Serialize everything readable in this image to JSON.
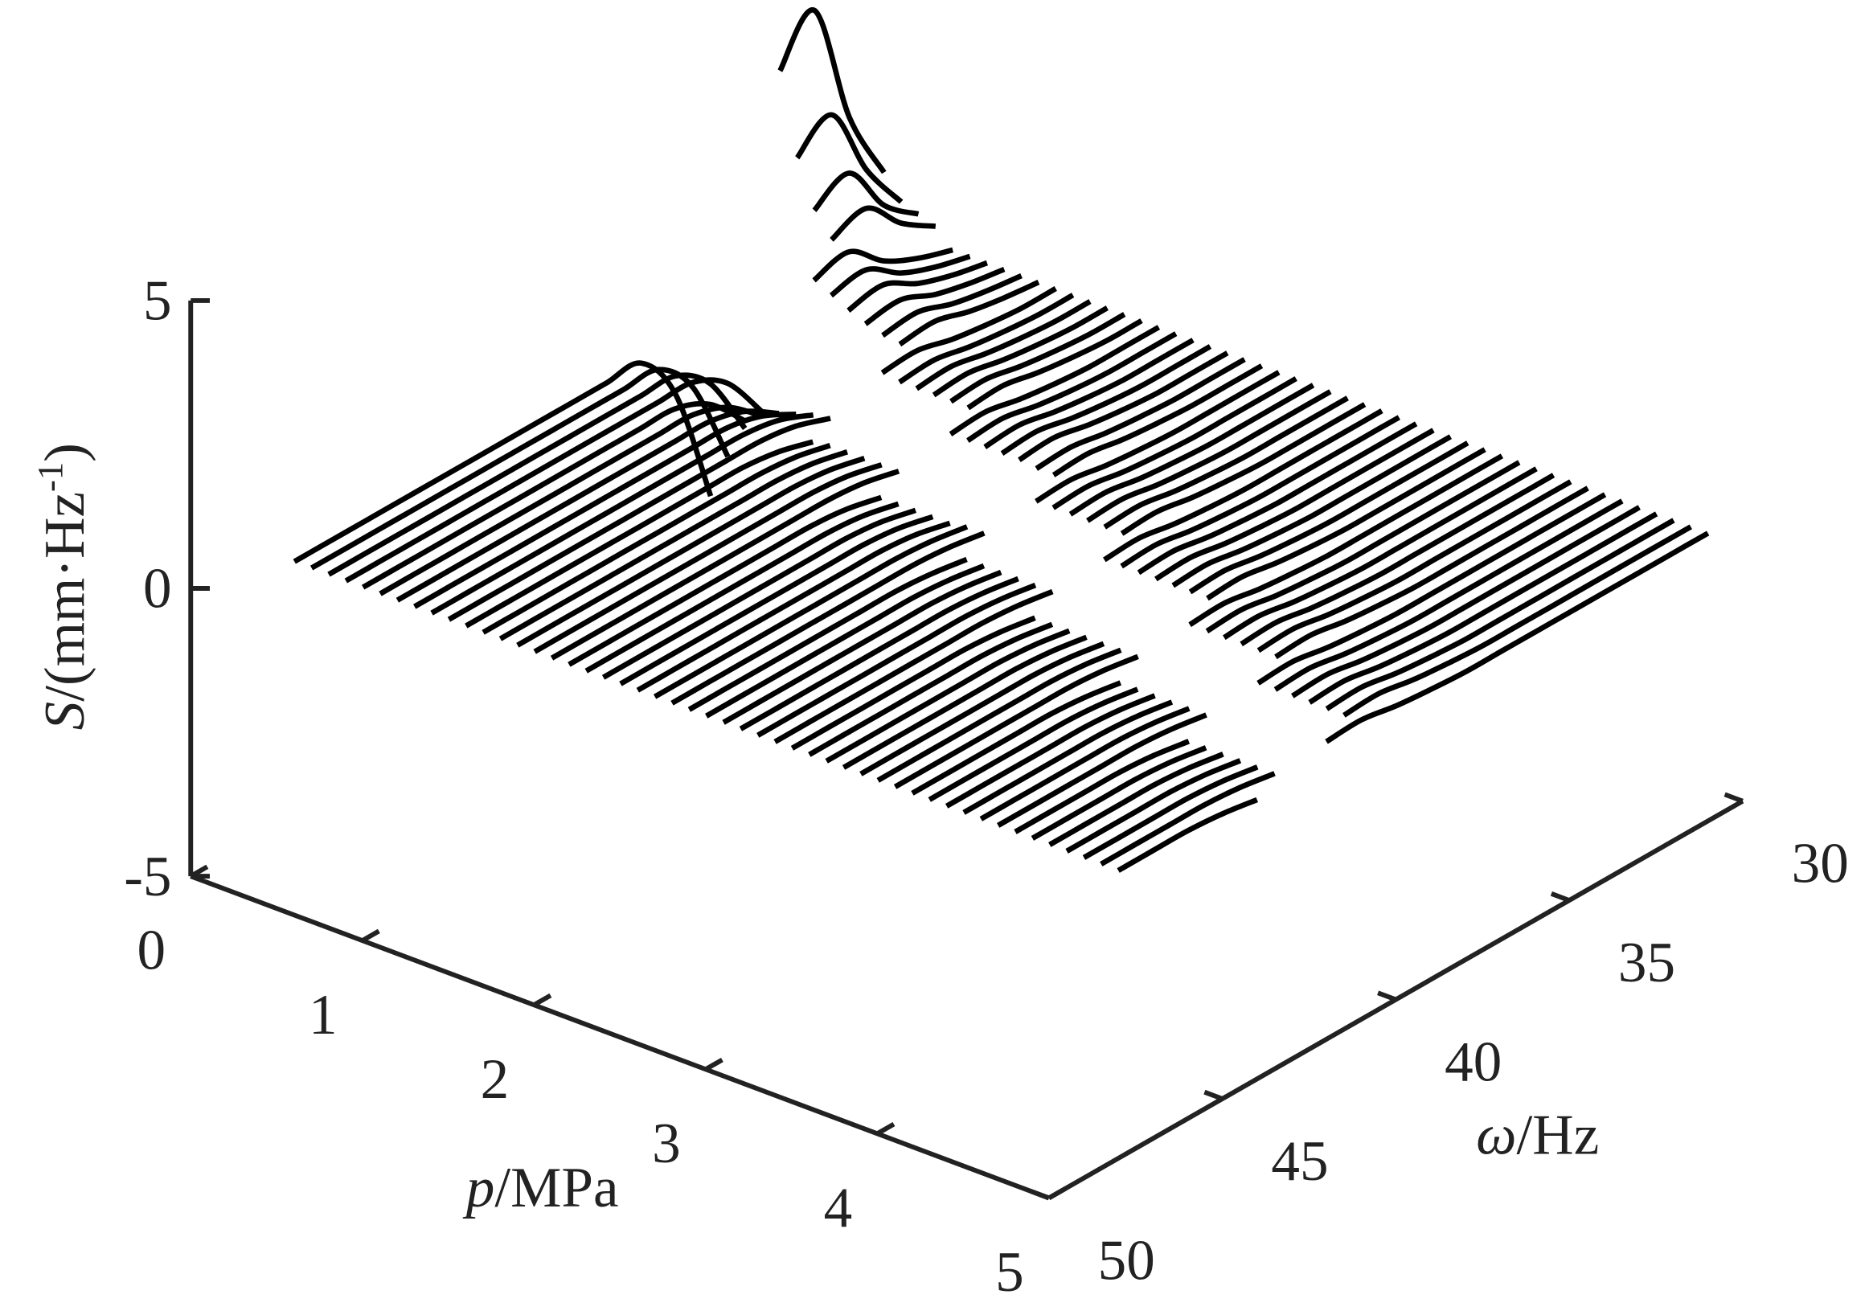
{
  "chart_data": {
    "type": "waterfall3d",
    "color": "#000000",
    "xlabel": [
      "p",
      "/MPa"
    ],
    "ylabel": [
      "ω",
      "/Hz"
    ],
    "zlabel": [
      "S",
      "/(mm·Hz",
      "-1",
      ")"
    ],
    "xlim": [
      0,
      5
    ],
    "xticks": [
      0,
      1,
      2,
      3,
      4,
      5
    ],
    "ylim": [
      30,
      50
    ],
    "yticks": [
      30,
      35,
      40,
      45,
      50
    ],
    "zlim": [
      -5,
      5
    ],
    "zticks": [
      -5,
      0,
      5
    ],
    "x": [
      31,
      32,
      33,
      34,
      35,
      36,
      37,
      38,
      39,
      40,
      41,
      42,
      43,
      44,
      45,
      46,
      47,
      48
    ],
    "series": [
      {
        "p": 0.2,
        "values": [
          0.9,
          2.2,
          4.4,
          3.7,
          null,
          -3.0,
          -0.9,
          0,
          0,
          0,
          0,
          0,
          0,
          0,
          0,
          0,
          0,
          0
        ]
      },
      {
        "p": 0.3,
        "values": [
          0.5,
          1.4,
          2.7,
          2.3,
          null,
          -2.2,
          -0.66,
          0,
          0,
          0,
          0,
          0,
          0,
          0,
          0,
          0,
          0,
          0
        ]
      },
      {
        "p": 0.4,
        "values": [
          0.4,
          0.9,
          1.8,
          1.5,
          null,
          -1.6,
          -0.48,
          0,
          0,
          0,
          0,
          0,
          0,
          0,
          0,
          0,
          0,
          0
        ]
      },
      {
        "p": 0.5,
        "values": [
          0.3,
          0.7,
          1.3,
          1.1,
          null,
          -1.2,
          -0.36,
          0,
          0,
          0,
          0,
          0,
          0,
          0,
          0,
          0,
          0,
          0
        ]
      },
      {
        "p": 0.6,
        "values": [
          0,
          0.2,
          0.5,
          1.0,
          0.85,
          null,
          -0.9,
          -0.27,
          0,
          0,
          0,
          0,
          0,
          0,
          0,
          0,
          0,
          0
        ]
      },
      {
        "p": 0.7,
        "values": [
          0,
          0.16,
          0.4,
          0.8,
          0.7,
          null,
          -0.7,
          -0.21,
          0,
          0,
          0,
          0,
          0,
          0,
          0,
          0,
          0,
          0
        ]
      },
      {
        "p": 0.8,
        "values": [
          0,
          0.13,
          0.33,
          0.65,
          0.55,
          null,
          -0.55,
          -0.17,
          0,
          0,
          0,
          0,
          0,
          0,
          0,
          0,
          0,
          0
        ]
      },
      {
        "p": 0.9,
        "values": [
          0,
          0.1,
          0.25,
          0.5,
          0.43,
          null,
          -0.45,
          -0.14,
          0,
          0,
          0,
          0,
          0,
          0,
          0,
          0,
          0,
          0
        ]
      },
      {
        "p": 1.0,
        "values": [
          0,
          0.08,
          0.2,
          0.4,
          0.34,
          null,
          -0.35,
          -0.1,
          0,
          0,
          0,
          0,
          0,
          0,
          0,
          0,
          0,
          0
        ]
      },
      {
        "p": 1.1,
        "values": [
          0,
          0.07,
          0.18,
          0.35,
          0.3,
          null,
          -0.3,
          -0.09,
          0,
          0,
          0,
          0,
          0,
          0,
          0,
          0,
          0,
          0
        ]
      },
      {
        "p": 1.2,
        "values": [
          0,
          0,
          0.06,
          0.15,
          0.3,
          0.26,
          null,
          -0.25,
          -0.08,
          0,
          0,
          0,
          0,
          0,
          0,
          0,
          0,
          0
        ]
      },
      {
        "p": 1.3,
        "values": [
          0,
          0,
          0.05,
          0.13,
          0.25,
          0.21,
          null,
          -0.2,
          -0.06,
          0,
          0,
          0,
          0,
          0,
          0,
          0,
          0,
          0
        ]
      },
      {
        "p": 1.4,
        "values": [
          0,
          0,
          0.05,
          0.13,
          0.25,
          0.21,
          null,
          -0.2,
          -0.06,
          0,
          0,
          0,
          0,
          0,
          0,
          0,
          0,
          0
        ]
      },
      {
        "p": 1.5,
        "values": [
          0,
          0,
          0.05,
          0.13,
          0.25,
          0.21,
          null,
          -0.2,
          -0.06,
          0,
          0,
          0,
          0,
          0,
          0,
          0,
          0,
          0
        ]
      },
      {
        "p": 1.6,
        "values": [
          0,
          0,
          0.05,
          0.13,
          0.25,
          0.21,
          null,
          -0.2,
          -0.06,
          0,
          0,
          0,
          0,
          0,
          0,
          0,
          0,
          0
        ]
      },
      {
        "p": 1.7,
        "values": [
          0,
          0,
          0.05,
          0.13,
          0.25,
          0.21,
          null,
          -0.2,
          -0.06,
          0,
          0,
          0,
          0,
          0,
          0,
          0,
          0,
          0
        ]
      },
      {
        "p": 1.8,
        "values": [
          0,
          0,
          0,
          0.05,
          0.13,
          0.25,
          0.21,
          null,
          -0.2,
          -0.06,
          0,
          0,
          0,
          0,
          0,
          0,
          0,
          0
        ]
      },
      {
        "p": 1.9,
        "values": [
          0,
          0,
          0,
          0.05,
          0.13,
          0.25,
          0.21,
          null,
          -0.2,
          -0.06,
          0,
          0,
          0,
          0,
          0,
          0,
          0,
          0
        ]
      },
      {
        "p": 2.0,
        "values": [
          0,
          0,
          0,
          0.05,
          0.13,
          0.25,
          0.21,
          null,
          -0.2,
          -0.06,
          0,
          0,
          0,
          0,
          0,
          0,
          0,
          0
        ]
      },
      {
        "p": 2.1,
        "values": [
          0,
          0,
          0,
          0.05,
          0.13,
          0.25,
          0.21,
          null,
          -0.2,
          -0.06,
          0,
          0,
          0,
          0,
          0,
          0,
          0,
          0
        ]
      },
      {
        "p": 2.2,
        "values": [
          0,
          0,
          0,
          0.05,
          0.13,
          0.25,
          0.21,
          null,
          -0.2,
          -0.06,
          0,
          0,
          0,
          0,
          0,
          0,
          0,
          0
        ]
      },
      {
        "p": 2.3,
        "values": [
          0,
          0,
          0,
          0.04,
          0.1,
          0.2,
          0.17,
          null,
          -0.15,
          -0.05,
          0,
          0,
          0,
          0,
          0,
          0,
          0,
          0
        ]
      },
      {
        "p": 2.4,
        "values": [
          0,
          0,
          0,
          0.04,
          0.1,
          0.2,
          0.17,
          null,
          -0.15,
          -0.05,
          0,
          0,
          0,
          0,
          0,
          0,
          0,
          0
        ]
      },
      {
        "p": 2.5,
        "values": [
          0,
          0,
          0,
          0,
          0.04,
          0.1,
          0.2,
          0.17,
          null,
          -0.15,
          -0.05,
          0,
          0,
          0,
          0,
          0,
          0,
          0
        ]
      },
      {
        "p": 2.6,
        "values": [
          0,
          0,
          0,
          0,
          0.04,
          0.1,
          0.2,
          0.17,
          null,
          -0.15,
          -0.05,
          0,
          0,
          0,
          0,
          0,
          0,
          0
        ]
      },
      {
        "p": 2.7,
        "values": [
          0,
          0,
          0,
          0,
          0.04,
          0.1,
          0.2,
          0.17,
          null,
          -0.15,
          -0.05,
          0,
          0,
          0,
          0,
          0,
          0,
          0
        ]
      },
      {
        "p": 2.8,
        "values": [
          0,
          0,
          0,
          0,
          0.04,
          0.1,
          0.2,
          0.17,
          null,
          -0.15,
          -0.05,
          0,
          0,
          0,
          0,
          0,
          0,
          0
        ]
      },
      {
        "p": 2.9,
        "values": [
          0,
          0,
          0,
          0,
          0.04,
          0.1,
          0.2,
          0.17,
          null,
          -0.15,
          -0.05,
          0,
          0,
          0,
          0,
          0,
          0,
          0
        ]
      },
      {
        "p": 3.0,
        "values": [
          0,
          0,
          0,
          0,
          0.04,
          0.1,
          0.2,
          0.17,
          null,
          -0.15,
          -0.05,
          0,
          0,
          0,
          0,
          0,
          0,
          0
        ]
      },
      {
        "p": 3.1,
        "values": [
          0,
          0,
          0,
          0,
          0,
          0.04,
          0.1,
          0.2,
          0.17,
          null,
          -0.15,
          -0.05,
          0,
          0,
          0,
          0,
          0,
          0
        ]
      },
      {
        "p": 3.2,
        "values": [
          0,
          0,
          0,
          0,
          0,
          0.04,
          0.1,
          0.2,
          0.17,
          null,
          -0.15,
          -0.05,
          0,
          0,
          0,
          0,
          0,
          0
        ]
      },
      {
        "p": 3.3,
        "values": [
          0,
          0,
          0,
          0,
          0,
          0.04,
          0.1,
          0.2,
          0.17,
          null,
          -0.15,
          -0.05,
          0,
          0,
          0,
          0,
          0,
          0
        ]
      },
      {
        "p": 3.4,
        "values": [
          0,
          0,
          0,
          0,
          0,
          0.04,
          0.1,
          0.2,
          0.17,
          null,
          -0.15,
          -0.05,
          0,
          0,
          0,
          0,
          0,
          0
        ]
      },
      {
        "p": 3.5,
        "values": [
          0,
          0,
          0,
          0,
          0,
          0.04,
          0.1,
          0.2,
          0.17,
          null,
          -0.15,
          -0.05,
          0,
          0,
          0,
          0,
          0,
          0
        ]
      },
      {
        "p": 3.6,
        "values": [
          0,
          0,
          0,
          0,
          0,
          0.04,
          0.1,
          0.2,
          0.17,
          null,
          -0.15,
          -0.05,
          0,
          0,
          0,
          0,
          0,
          0
        ]
      },
      {
        "p": 3.7,
        "values": [
          0,
          0,
          0,
          0,
          0,
          0.04,
          0.1,
          0.2,
          0.17,
          null,
          -0.15,
          -0.05,
          0,
          0,
          0,
          0,
          0,
          0
        ]
      },
      {
        "p": 3.8,
        "values": [
          0,
          0,
          0,
          0,
          0,
          0,
          0.04,
          0.1,
          0.2,
          0.17,
          null,
          -0.15,
          -0.05,
          0,
          0,
          0,
          0,
          0
        ]
      },
      {
        "p": 3.9,
        "values": [
          0,
          0,
          0,
          0,
          0,
          0,
          0.04,
          0.1,
          0.2,
          0.17,
          null,
          -0.15,
          -0.05,
          0,
          0,
          0,
          0,
          0
        ]
      },
      {
        "p": 4.0,
        "values": [
          0,
          0,
          0,
          0,
          0,
          0,
          0.04,
          0.1,
          0.2,
          0.17,
          null,
          -0.15,
          -0.05,
          0,
          0,
          0,
          0,
          0
        ]
      },
      {
        "p": 4.1,
        "values": [
          0,
          0,
          0,
          0,
          0,
          0,
          0.04,
          0.1,
          0.2,
          0.17,
          null,
          -0.15,
          -0.05,
          0,
          0,
          0,
          0,
          0
        ]
      },
      {
        "p": 4.2,
        "values": [
          0,
          0,
          0,
          0,
          0,
          0,
          0.04,
          0.1,
          0.2,
          0.17,
          null,
          -0.15,
          -0.05,
          0,
          0,
          0,
          0,
          0
        ]
      },
      {
        "p": 4.3,
        "values": [
          0,
          0,
          0,
          0,
          0,
          0,
          0.04,
          0.1,
          0.2,
          0.17,
          null,
          -0.15,
          -0.05,
          0,
          0,
          0,
          0,
          0
        ]
      },
      {
        "p": 4.4,
        "values": [
          0,
          0,
          0,
          0,
          0,
          0,
          0,
          0.04,
          0.1,
          0.2,
          0.17,
          null,
          -0.15,
          -0.05,
          0,
          0,
          0,
          0
        ]
      },
      {
        "p": 4.5,
        "values": [
          0,
          0,
          0,
          0,
          0,
          0,
          0,
          0.04,
          0.1,
          0.2,
          0.17,
          null,
          -0.15,
          -0.05,
          0,
          0,
          0,
          0
        ]
      },
      {
        "p": 4.6,
        "values": [
          0,
          0,
          0,
          0,
          0,
          0,
          0,
          0.04,
          0.1,
          0.2,
          0.17,
          null,
          -0.15,
          -0.05,
          0,
          0,
          0,
          0
        ]
      },
      {
        "p": 4.7,
        "values": [
          0,
          0,
          0,
          0,
          0,
          0,
          0,
          0.04,
          0.1,
          0.2,
          0.17,
          null,
          -0.15,
          -0.05,
          0,
          0,
          0,
          0
        ]
      },
      {
        "p": 4.8,
        "values": [
          0,
          0,
          0,
          0,
          0,
          0,
          0,
          0.04,
          0.1,
          0.2,
          0.17,
          null,
          -0.15,
          -0.05,
          0,
          0,
          0,
          0
        ]
      },
      {
        "p": 4.9,
        "values": [
          0,
          0,
          0,
          0,
          0,
          0,
          0,
          0.04,
          0.1,
          0.2,
          0.17,
          null,
          -0.15,
          -0.05,
          0,
          0,
          0,
          0
        ]
      },
      {
        "p": 5.0,
        "values": [
          0,
          0,
          0,
          0,
          0,
          0,
          0,
          0,
          0.04,
          0.1,
          0.2,
          0.17,
          null,
          -0.15,
          -0.05,
          0,
          0,
          0
        ]
      }
    ]
  }
}
